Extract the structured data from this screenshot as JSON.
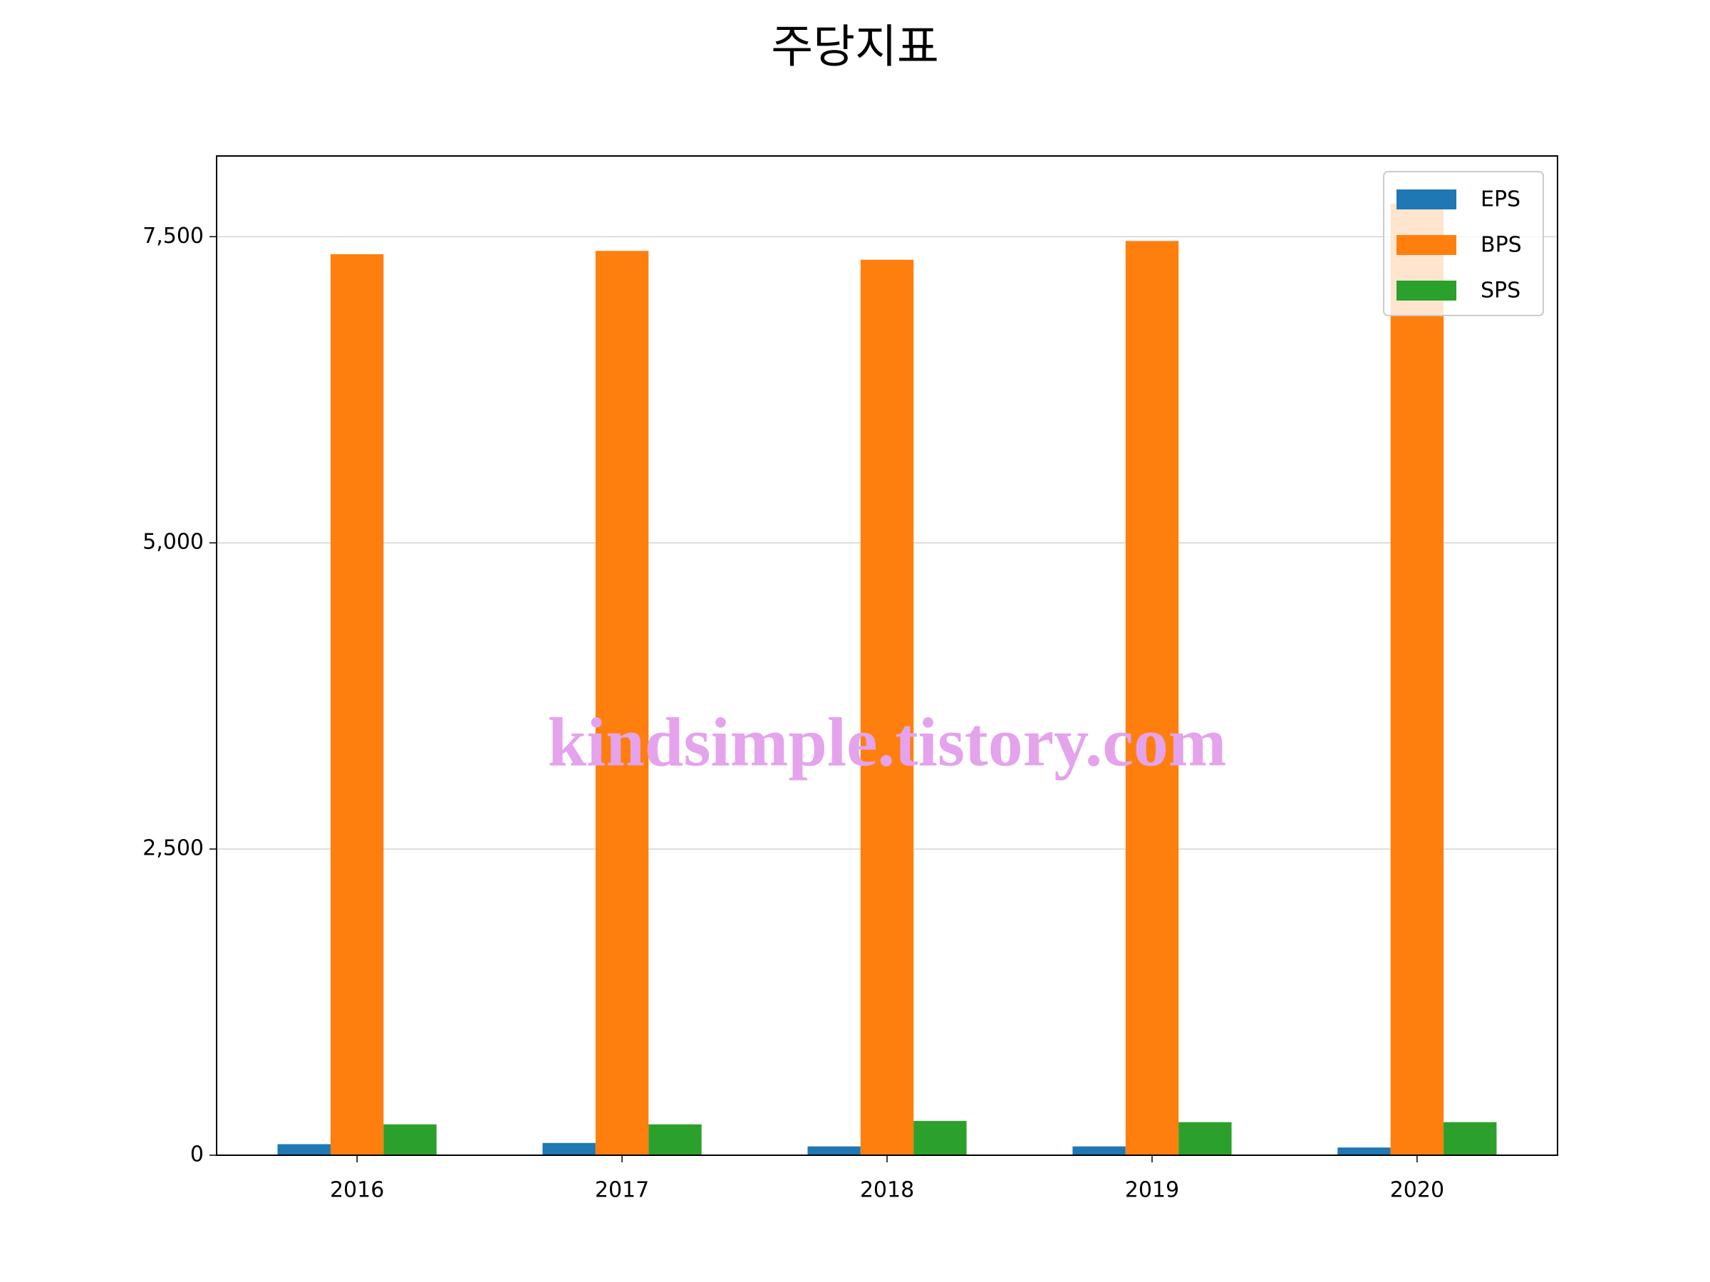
{
  "chart_data": {
    "type": "bar",
    "title": "주당지표",
    "categories": [
      "2016",
      "2017",
      "2018",
      "2019",
      "2020"
    ],
    "series": [
      {
        "name": "EPS",
        "color": "#1f77b4",
        "values": [
          90,
          100,
          72,
          72,
          63
        ]
      },
      {
        "name": "BPS",
        "color": "#ff7f0e",
        "values": [
          7357,
          7384,
          7312,
          7465,
          7770
        ]
      },
      {
        "name": "SPS",
        "color": "#2ca02c",
        "values": [
          252,
          252,
          280,
          270,
          270
        ]
      }
    ],
    "ylim": [
      0,
      8159
    ],
    "yticks": [
      0,
      {
        "value": 2500,
        "label": "2,500"
      },
      {
        "value": 5000,
        "label": "5,000"
      },
      {
        "value": 7500,
        "label": "7,500"
      }
    ],
    "grid": true,
    "legend": "upper right",
    "watermark": "kindsimple.tistory.com"
  }
}
